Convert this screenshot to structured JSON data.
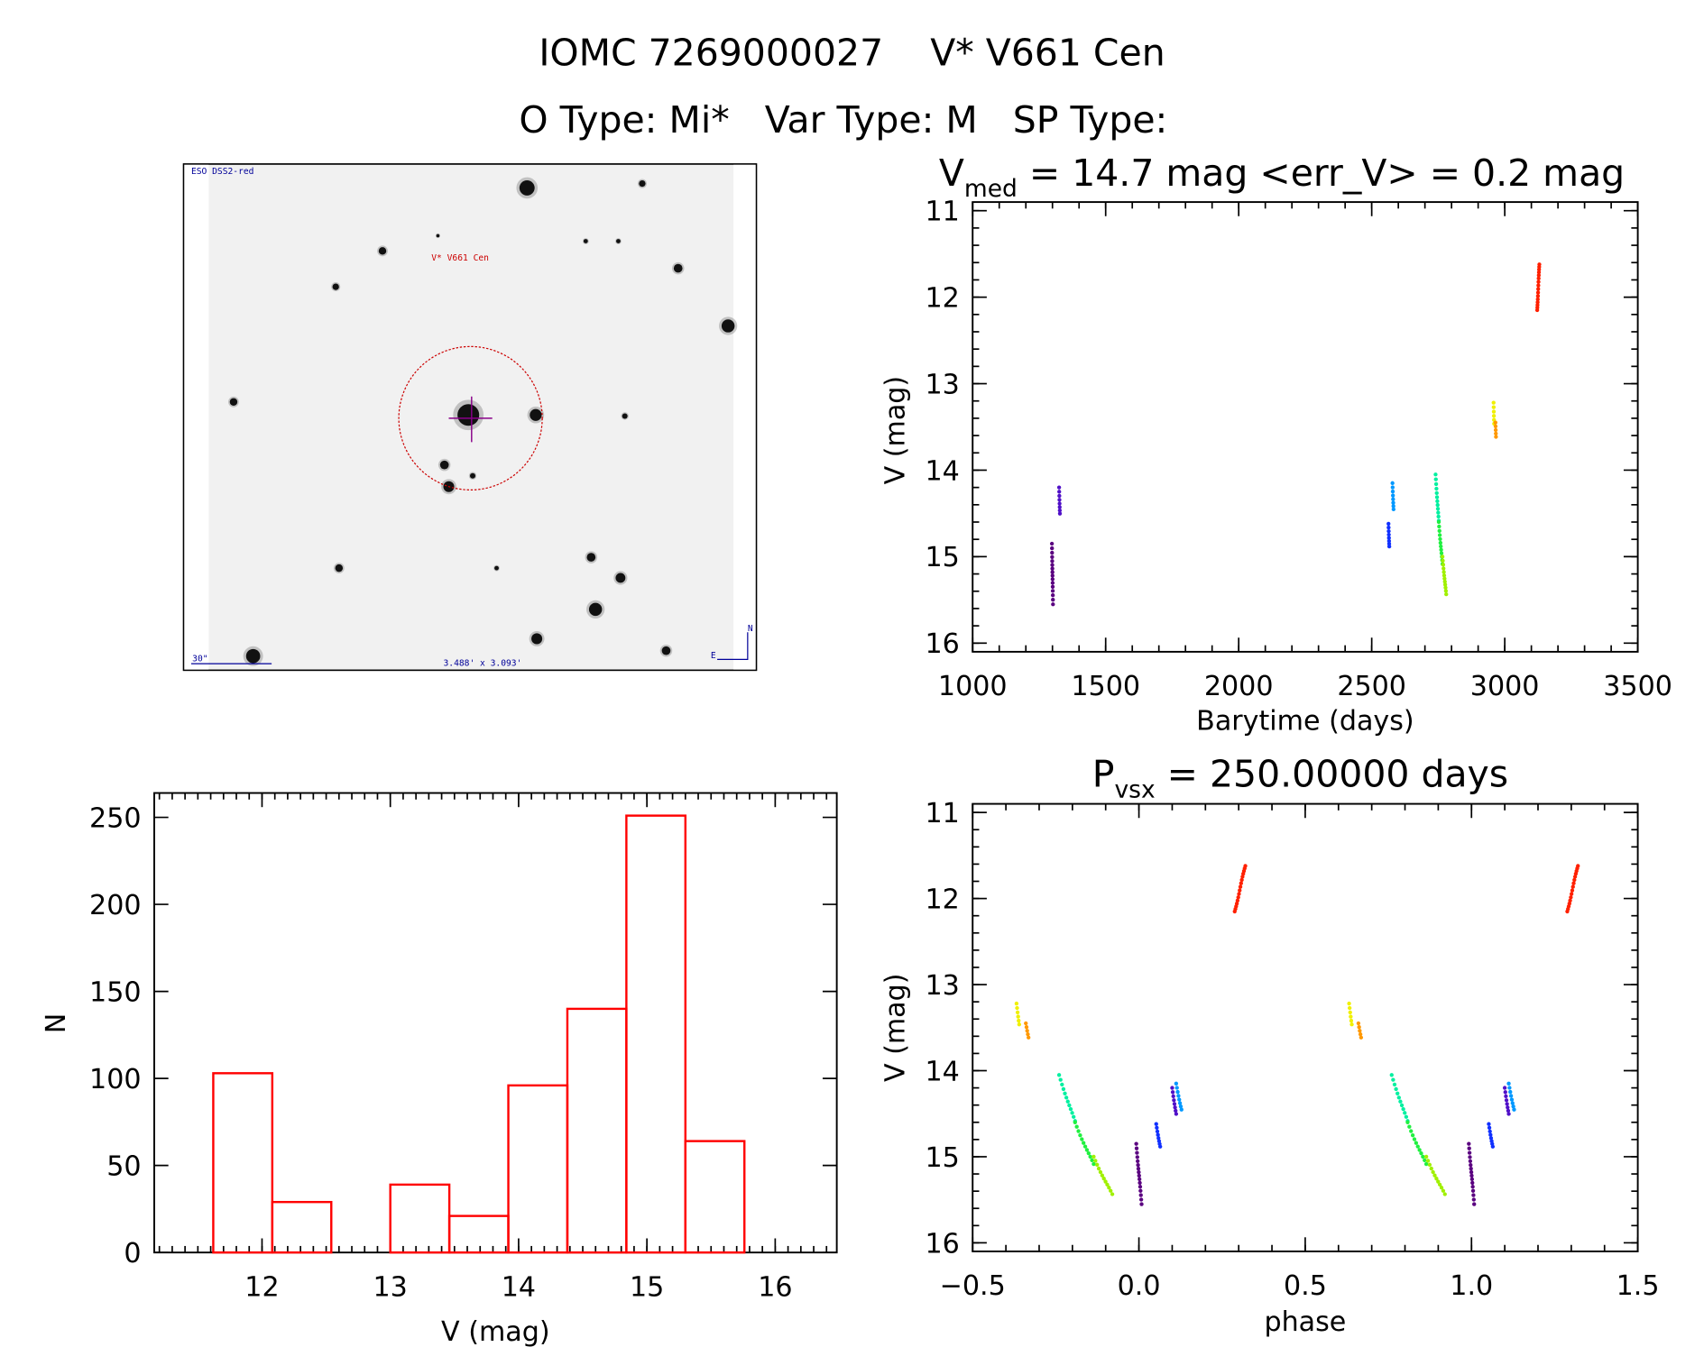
{
  "header": {
    "title_line1": "IOMC 7269000027    V* V661 Cen",
    "title_line2": "O Type: Mi*   Var Type: M   SP Type:"
  },
  "finder_image": {
    "survey_label": "ESO DSS2-red",
    "target_label": "V* V661 Cen",
    "scale_label": "30\"",
    "fov_label": "3.488' x 3.093'",
    "north_label": "N",
    "east_label": "E",
    "target_label_color": "#cc0000",
    "overlay_color": "#000099"
  },
  "chart_data": [
    {
      "type": "scatter",
      "name_id": "light-curve",
      "title_main": "V",
      "title_sub": "med",
      "title_rest": " = 14.7 mag <err_V> = 0.2 mag",
      "xlabel": "Barytime (days)",
      "ylabel": "V (mag)",
      "xlim": [
        1000,
        3500
      ],
      "ylim": [
        16.1,
        10.9
      ],
      "y_inverted": true,
      "xticks": [
        1000,
        1500,
        2000,
        2500,
        3000,
        3500
      ],
      "yticks": [
        11,
        12,
        13,
        14,
        15,
        16
      ],
      "grid": false,
      "segments": [
        {
          "color": "#5a0080",
          "t": [
            1298,
            1302
          ],
          "v": [
            14.85,
            15.55
          ],
          "n": 16
        },
        {
          "color": "#5010c8",
          "t": [
            1325,
            1328
          ],
          "v": [
            14.2,
            14.5
          ],
          "n": 8
        },
        {
          "color": "#1030ff",
          "t": [
            2563,
            2566
          ],
          "v": [
            14.62,
            14.88
          ],
          "n": 8
        },
        {
          "color": "#0098ff",
          "t": [
            2578,
            2582
          ],
          "v": [
            14.15,
            14.45
          ],
          "n": 8
        },
        {
          "color": "#00f0a0",
          "t": [
            2740,
            2752
          ],
          "v": [
            14.05,
            14.6
          ],
          "n": 12
        },
        {
          "color": "#20f040",
          "t": [
            2752,
            2766
          ],
          "v": [
            14.6,
            15.1
          ],
          "n": 12
        },
        {
          "color": "#a0f000",
          "t": [
            2766,
            2780
          ],
          "v": [
            15.0,
            15.45
          ],
          "n": 12
        },
        {
          "color": "#f0f000",
          "t": [
            2958,
            2960
          ],
          "v": [
            13.22,
            13.45
          ],
          "n": 6
        },
        {
          "color": "#ff9800",
          "t": [
            2965,
            2967
          ],
          "v": [
            13.45,
            13.6
          ],
          "n": 5
        },
        {
          "color": "#ff2000",
          "t": [
            3122,
            3130
          ],
          "v": [
            12.15,
            11.62
          ],
          "n": 16
        }
      ]
    },
    {
      "type": "scatter",
      "name_id": "phase-curve",
      "title_main": "P",
      "title_sub": "vsx",
      "title_rest": " = 250.00000 days",
      "period_days": 250.0,
      "xlabel": "phase",
      "ylabel": "V (mag)",
      "xlim": [
        -0.5,
        1.5
      ],
      "ylim": [
        16.1,
        10.9
      ],
      "y_inverted": true,
      "xticks": [
        "-0.5",
        "0.0",
        "0.5",
        "1.0",
        "1.5"
      ],
      "yticks": [
        11,
        12,
        13,
        14,
        15,
        16
      ],
      "grid": false
    },
    {
      "type": "bar",
      "name_id": "histogram",
      "xlabel": "V (mag)",
      "ylabel": "N",
      "xlim": [
        11.16,
        16.48
      ],
      "ylim": [
        0,
        264
      ],
      "xticks": [
        12,
        13,
        14,
        15,
        16
      ],
      "yticks": [
        0,
        50,
        100,
        150,
        200,
        250
      ],
      "bin_edges": [
        11.62,
        12.08,
        12.54,
        13.0,
        13.46,
        13.92,
        14.38,
        14.84,
        15.3,
        15.76
      ],
      "values": [
        103,
        29,
        0,
        39,
        21,
        96,
        140,
        251,
        64
      ],
      "bar_color": "#ff0000",
      "grid": false
    }
  ]
}
